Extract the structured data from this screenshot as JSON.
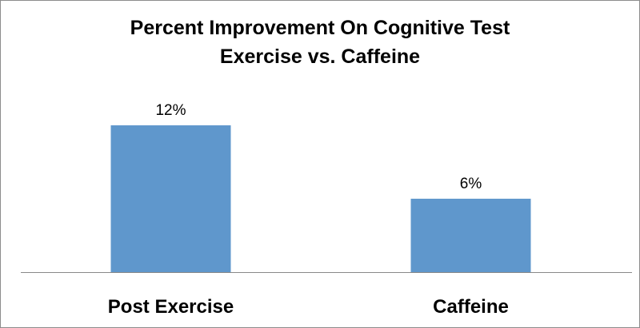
{
  "chart_data": {
    "type": "bar",
    "title": "Percent Improvement On Cognitive Test",
    "subtitle": "Exercise vs. Caffeine",
    "categories": [
      "Post Exercise",
      "Caffeine"
    ],
    "values": [
      12,
      6
    ],
    "data_labels": [
      "12%",
      "6%"
    ],
    "xlabel": "",
    "ylabel": "",
    "ylim": [
      0,
      14
    ],
    "grid": false,
    "legend": "none",
    "colors": {
      "bar": "#5f97cc",
      "axis": "#888888"
    }
  }
}
